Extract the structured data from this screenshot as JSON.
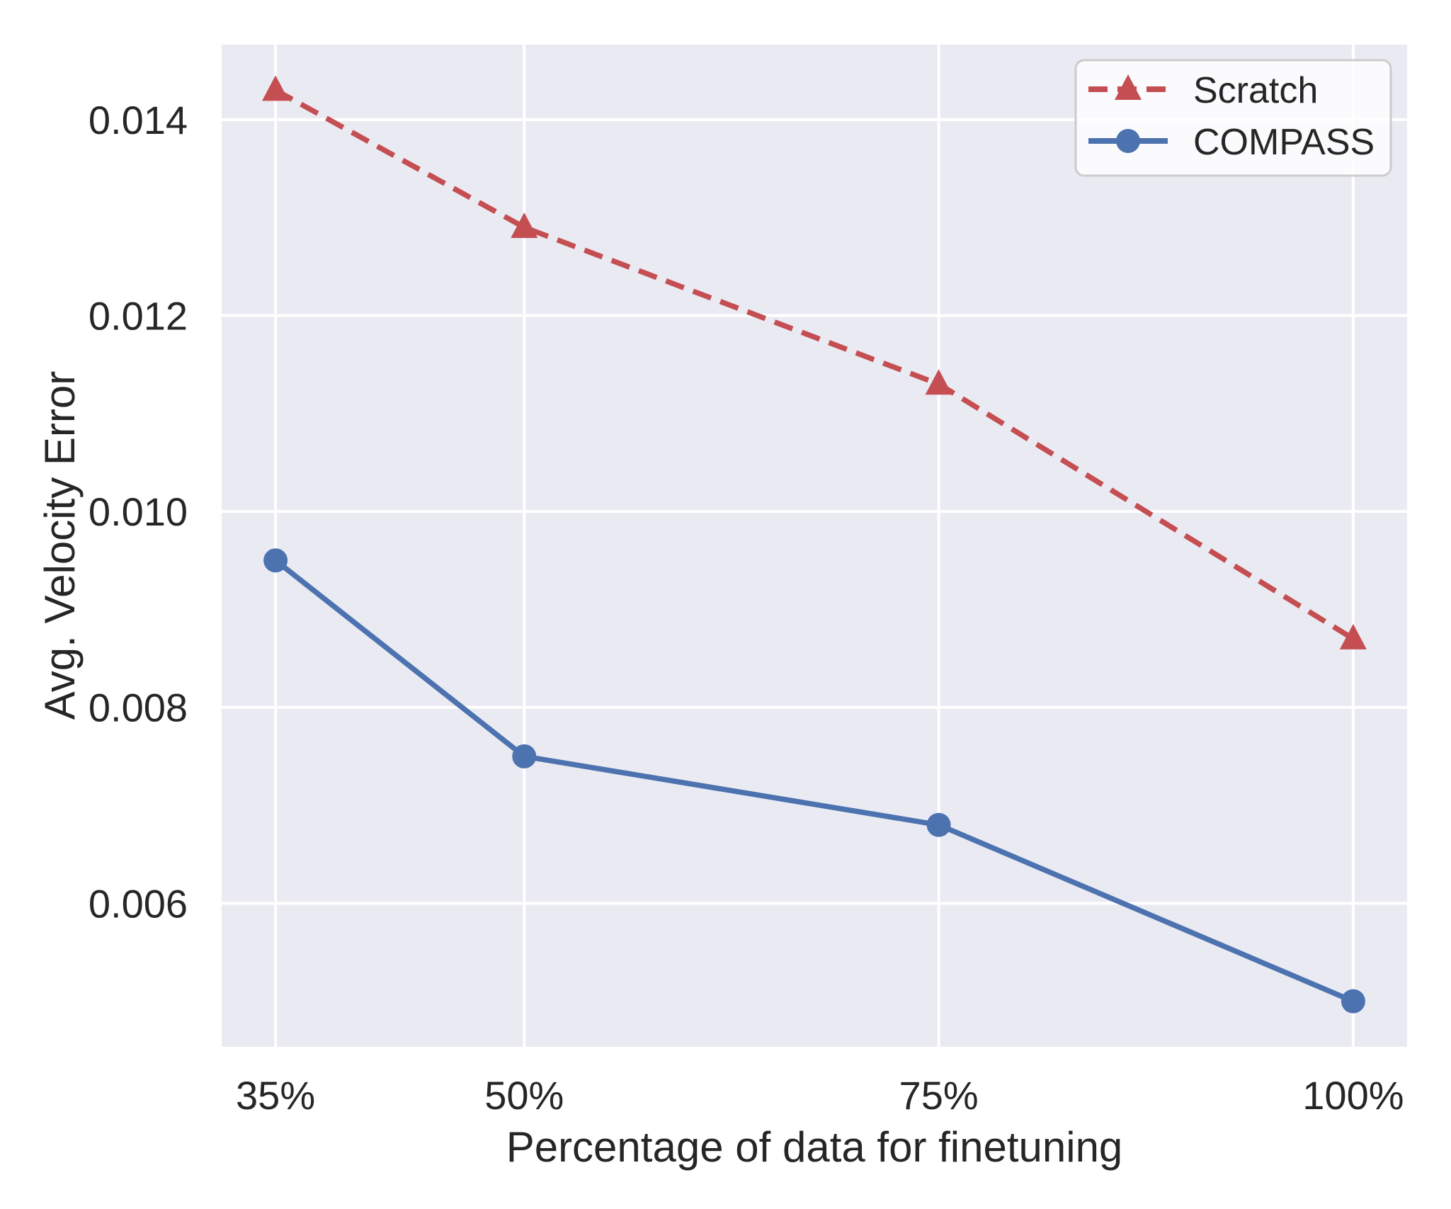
{
  "chart_data": {
    "type": "line",
    "title": "",
    "xlabel": "Percentage of data for finetuning",
    "ylabel": "Avg. Velocity Error",
    "x": [
      35,
      50,
      75,
      100
    ],
    "xtick_labels": [
      "35%",
      "50%",
      "75%",
      "100%"
    ],
    "yticks": [
      0.006,
      0.008,
      0.01,
      0.012,
      0.014
    ],
    "ytick_labels": [
      "0.006",
      "0.008",
      "0.010",
      "0.012",
      "0.014"
    ],
    "xlim": [
      31.75,
      103.25
    ],
    "ylim": [
      0.004535,
      0.014765
    ],
    "grid": true,
    "legend_position": "upper right",
    "series": [
      {
        "name": "Scratch",
        "color": "#c44e52",
        "linestyle": "dashed",
        "marker": "triangle",
        "values": [
          0.0143,
          0.0129,
          0.0113,
          0.0087
        ]
      },
      {
        "name": "COMPASS",
        "color": "#4c72b0",
        "linestyle": "solid",
        "marker": "circle",
        "values": [
          0.0095,
          0.0075,
          0.0068,
          0.005
        ]
      }
    ],
    "styles": {
      "plot_bg": "#eaeaf2",
      "grid_color": "#ffffff",
      "text_color": "#262626",
      "legend_bg": "rgba(255,255,255,0.8)",
      "legend_border": "#cccccc"
    }
  }
}
